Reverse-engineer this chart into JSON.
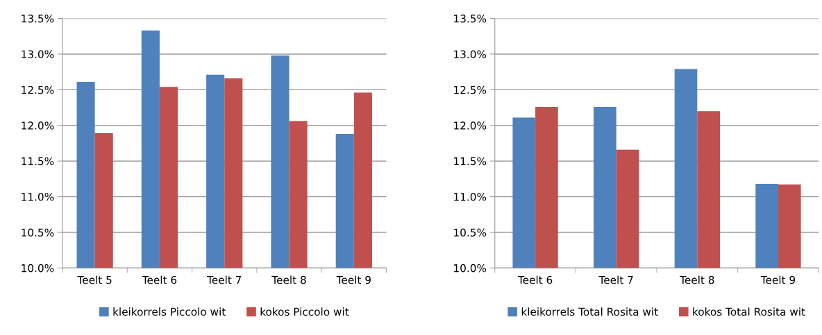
{
  "chart_data": [
    {
      "type": "bar",
      "categories": [
        "Teelt 5",
        "Teelt 6",
        "Teelt 7",
        "Teelt 8",
        "Teelt 9"
      ],
      "series": [
        {
          "name": "kleikorrels Piccolo wit",
          "color": "#4f81bd",
          "values": [
            12.61,
            13.33,
            12.71,
            12.98,
            11.88
          ]
        },
        {
          "name": "kokos Piccolo wit",
          "color": "#c0504d",
          "values": [
            11.89,
            12.54,
            12.66,
            12.06,
            12.46
          ]
        }
      ],
      "ylim": [
        10.0,
        13.5
      ],
      "yticks": [
        {
          "value": 10.0,
          "label": "10.0%"
        },
        {
          "value": 10.5,
          "label": "10.5%"
        },
        {
          "value": 11.0,
          "label": "11.0%"
        },
        {
          "value": 11.5,
          "label": "11.5%"
        },
        {
          "value": 12.0,
          "label": "12.0%"
        },
        {
          "value": 12.5,
          "label": "12.5%"
        },
        {
          "value": 13.0,
          "label": "13.0%"
        },
        {
          "value": 13.5,
          "label": "13.5%"
        }
      ],
      "grid": "y",
      "legend": "bottom"
    },
    {
      "type": "bar",
      "categories": [
        "Teelt 6",
        "Teelt 7",
        "Teelt 8",
        "Teelt 9"
      ],
      "series": [
        {
          "name": "kleikorrels Total Rosita wit",
          "color": "#4f81bd",
          "values": [
            12.11,
            12.26,
            12.79,
            11.18
          ]
        },
        {
          "name": "kokos Total Rosita wit",
          "color": "#c0504d",
          "values": [
            12.26,
            11.66,
            12.2,
            11.17
          ]
        }
      ],
      "ylim": [
        10.0,
        13.5
      ],
      "yticks": [
        {
          "value": 10.0,
          "label": "10.0%"
        },
        {
          "value": 10.5,
          "label": "10.5%"
        },
        {
          "value": 11.0,
          "label": "11.0%"
        },
        {
          "value": 11.5,
          "label": "11.5%"
        },
        {
          "value": 12.0,
          "label": "12.0%"
        },
        {
          "value": 12.5,
          "label": "12.5%"
        },
        {
          "value": 13.0,
          "label": "13.0%"
        },
        {
          "value": 13.5,
          "label": "13.5%"
        }
      ],
      "grid": "y",
      "legend": "bottom"
    }
  ]
}
